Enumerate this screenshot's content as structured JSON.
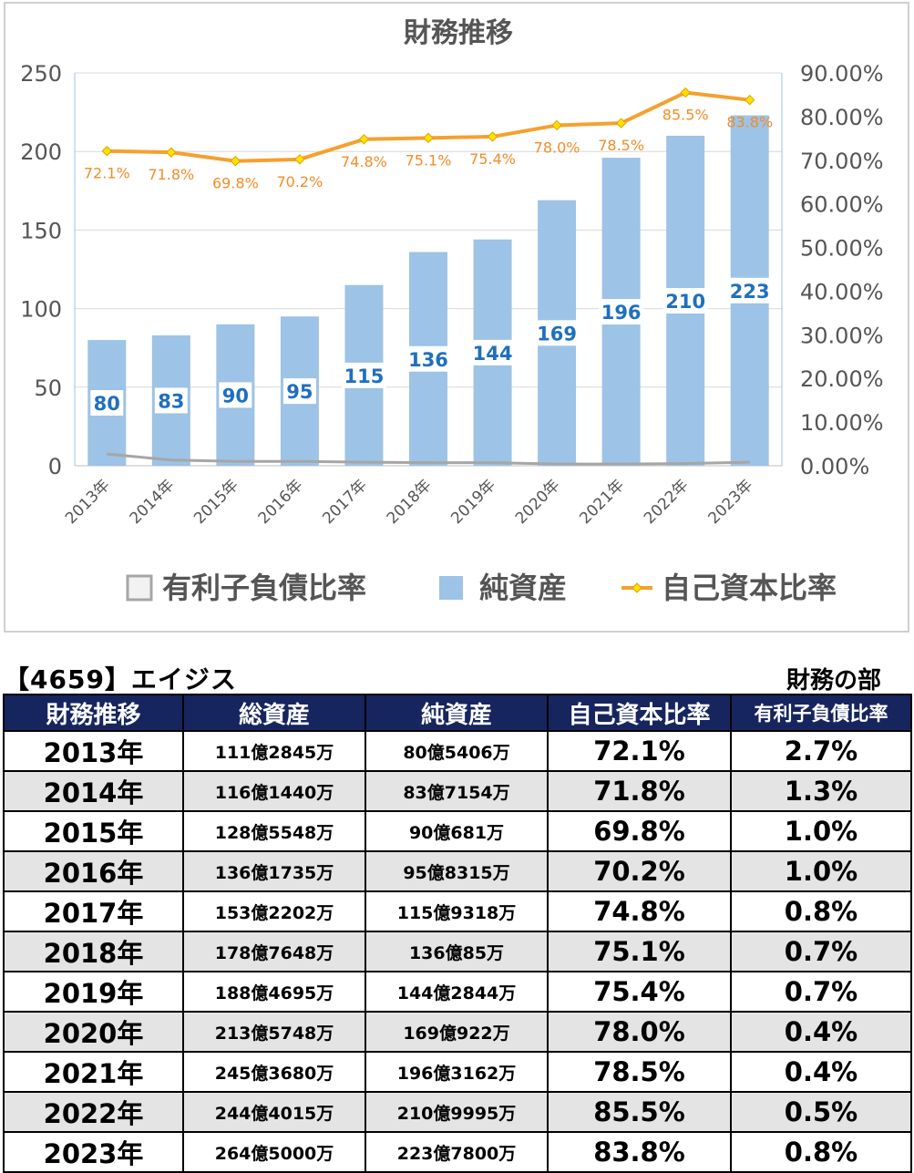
{
  "chart_data": {
    "type": "bar",
    "title": "財務推移",
    "categories": [
      "2013年",
      "2014年",
      "2015年",
      "2016年",
      "2017年",
      "2018年",
      "2019年",
      "2020年",
      "2021年",
      "2022年",
      "2023年"
    ],
    "series": [
      {
        "name": "有利子負債比率",
        "kind": "line",
        "axis": "right",
        "color": "#a6a6a6",
        "values": [
          2.7,
          1.3,
          1.0,
          1.0,
          0.8,
          0.7,
          0.7,
          0.4,
          0.4,
          0.5,
          0.8
        ]
      },
      {
        "name": "純資産",
        "kind": "bar",
        "axis": "left",
        "color": "#9dc3e6",
        "values": [
          80,
          83,
          90,
          95,
          115,
          136,
          144,
          169,
          196,
          210,
          223
        ],
        "labels": [
          "80",
          "83",
          "90",
          "95",
          "115",
          "136",
          "144",
          "169",
          "196",
          "210",
          "223"
        ]
      },
      {
        "name": "自己資本比率",
        "kind": "line",
        "axis": "right",
        "color": "#f5a030",
        "values": [
          72.1,
          71.8,
          69.8,
          70.2,
          74.8,
          75.1,
          75.4,
          78.0,
          78.5,
          85.5,
          83.8
        ],
        "labels": [
          "72.1%",
          "71.8%",
          "69.8%",
          "70.2%",
          "74.8%",
          "75.1%",
          "75.4%",
          "78.0%",
          "78.5%",
          "85.5%",
          "83.8%"
        ]
      }
    ],
    "y_left": {
      "range": [
        0,
        250
      ],
      "ticks": [
        "0",
        "50",
        "100",
        "150",
        "200",
        "250"
      ]
    },
    "y_right": {
      "range": [
        0,
        90
      ],
      "ticks": [
        "0.00%",
        "10.00%",
        "20.00%",
        "30.00%",
        "40.00%",
        "50.00%",
        "60.00%",
        "70.00%",
        "80.00%",
        "90.00%"
      ]
    },
    "grid": true,
    "legend_position": "bottom"
  },
  "table": {
    "company": "【4659】エイジス",
    "section": "財務の部",
    "headers": [
      "財務推移",
      "総資産",
      "純資産",
      "自己資本比率",
      "有利子負債比率"
    ],
    "rows": [
      [
        "2013年",
        "111億2845万",
        "80億5406万",
        "72.1%",
        "2.7%"
      ],
      [
        "2014年",
        "116億1440万",
        "83億7154万",
        "71.8%",
        "1.3%"
      ],
      [
        "2015年",
        "128億5548万",
        "90億681万",
        "69.8%",
        "1.0%"
      ],
      [
        "2016年",
        "136億1735万",
        "95億8315万",
        "70.2%",
        "1.0%"
      ],
      [
        "2017年",
        "153億2202万",
        "115億9318万",
        "74.8%",
        "0.8%"
      ],
      [
        "2018年",
        "178億7648万",
        "136億85万",
        "75.1%",
        "0.7%"
      ],
      [
        "2019年",
        "188億4695万",
        "144億2844万",
        "75.4%",
        "0.7%"
      ],
      [
        "2020年",
        "213億5748万",
        "169億922万",
        "78.0%",
        "0.4%"
      ],
      [
        "2021年",
        "245億3680万",
        "196億3162万",
        "78.5%",
        "0.4%"
      ],
      [
        "2022年",
        "244億4015万",
        "210億9995万",
        "85.5%",
        "0.5%"
      ],
      [
        "2023年",
        "264億5000万",
        "223億7800万",
        "83.8%",
        "0.8%"
      ]
    ]
  }
}
